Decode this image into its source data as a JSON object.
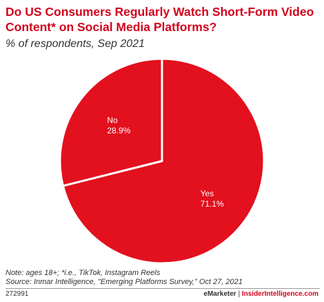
{
  "header": {
    "title": "Do US Consumers Regularly Watch Short-Form Video Content* on Social Media Platforms?",
    "subtitle": "% of respondents, Sep 2021"
  },
  "chart_data": {
    "type": "pie",
    "title": "Do US Consumers Regularly Watch Short-Form Video Content* on Social Media Platforms?",
    "subtitle": "% of respondents, Sep 2021",
    "slices": [
      {
        "label": "Yes",
        "value": 71.1,
        "value_label": "71.1%",
        "color": "#e3101e"
      },
      {
        "label": "No",
        "value": 28.9,
        "value_label": "28.9%",
        "color": "#e3101e"
      }
    ],
    "separator_color": "#ffffff"
  },
  "footer": {
    "note": "Note: ages 18+; *i.e., TikTok, Instagram Reels",
    "source": "Source: Inmar Intelligence, \"Emerging Platforms Survey,\" Oct 27, 2021",
    "chart_id": "272991",
    "brand_emarketer": "eMarketer",
    "separator": "|",
    "brand_insider": "InsiderIntelligence.com"
  }
}
